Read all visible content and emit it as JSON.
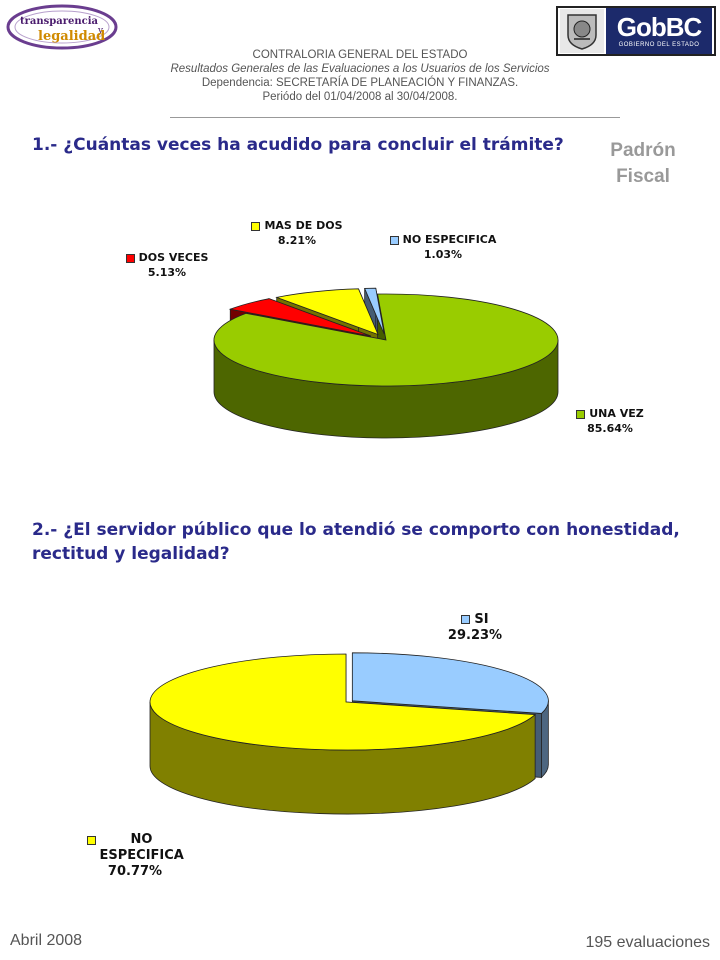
{
  "header": {
    "logo_left_line1": "transparencia",
    "logo_left_line2": "legalidad",
    "logo_left_mid": "y",
    "logo_right_text": "GobBC",
    "logo_right_sub": "GOBIERNO DEL ESTADO",
    "organization": "CONTRALORIA GENERAL DEL ESTADO",
    "report_title": "Resultados Generales de las Evaluaciones a los Usuarios de los Servicios",
    "dependency": "Dependencia: SECRETARÍA DE PLANEACIÓN Y FINANZAS.",
    "period": "Periódo del 01/04/2008 al 30/04/2008."
  },
  "side_label": {
    "line1": "Padrón",
    "line2": "Fiscal"
  },
  "colors": {
    "question": "#2a2a8a",
    "green": "#99cc00",
    "red": "#ff0000",
    "yellow": "#ffff00",
    "light_blue": "#99ccff"
  },
  "chart_data": [
    {
      "type": "pie",
      "title": "1.- ¿Cuántas veces ha acudido para concluir el trámite?",
      "series": [
        {
          "values": [
            85.64,
            5.13,
            8.21,
            1.03
          ]
        }
      ],
      "categories": [
        "UNA VEZ",
        "DOS VECES",
        "MAS DE DOS",
        "NO ESPECIFICA"
      ],
      "labels": [
        "UNA VEZ",
        "DOS VECES",
        "MAS DE DOS",
        "NO ESPECIFICA"
      ],
      "value_labels": [
        "85.64%",
        "5.13%",
        "8.21%",
        "1.03%"
      ],
      "colors": [
        "#99cc00",
        "#ff0000",
        "#ffff00",
        "#99ccff"
      ],
      "style": "3d-exploded"
    },
    {
      "type": "pie",
      "title": "2.- ¿El servidor público que lo atendió se comporto con honestidad, rectitud y legalidad?",
      "series": [
        {
          "values": [
            29.23,
            70.77
          ]
        }
      ],
      "categories": [
        "SI",
        "NO ESPECIFICA"
      ],
      "labels": [
        "SI",
        "NO ESPECIFICA"
      ],
      "value_labels": [
        "29.23%",
        "70.77%"
      ],
      "colors": [
        "#99ccff",
        "#ffff00"
      ],
      "style": "3d-exploded"
    }
  ],
  "footer": {
    "date": "Abril 2008",
    "evaluations": "195 evaluaciones"
  }
}
